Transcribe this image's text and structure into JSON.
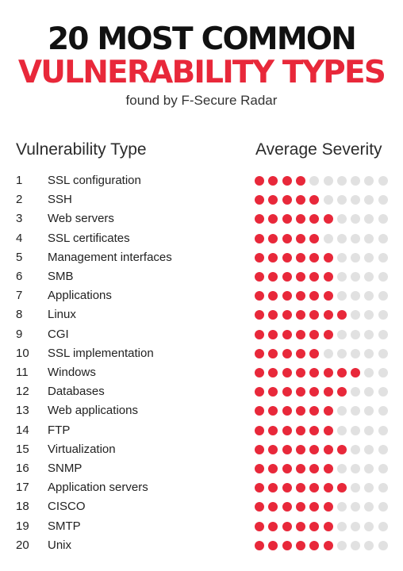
{
  "header": {
    "title_line1": "20 MOST COMMON",
    "title_line2": "VULNERABILITY TYPES",
    "subtitle": "found by F-Secure Radar",
    "col_type": "Vulnerability Type",
    "col_severity": "Average Severity"
  },
  "colors": {
    "filled": "#e8283a",
    "empty": "#e1e1e1"
  },
  "chart_data": {
    "type": "table",
    "title": "20 MOST COMMON VULNERABILITY TYPES",
    "subtitle": "found by F-Secure Radar",
    "columns": [
      "Vulnerability Type",
      "Average Severity"
    ],
    "scale_max": 10,
    "rows": [
      {
        "rank": "1",
        "type": "SSL configuration",
        "severity": 4
      },
      {
        "rank": "2",
        "type": "SSH",
        "severity": 5
      },
      {
        "rank": "3",
        "type": "Web servers",
        "severity": 6
      },
      {
        "rank": "4",
        "type": "SSL certificates",
        "severity": 5
      },
      {
        "rank": "5",
        "type": "Management interfaces",
        "severity": 6
      },
      {
        "rank": "6",
        "type": "SMB",
        "severity": 6
      },
      {
        "rank": "7",
        "type": "Applications",
        "severity": 6
      },
      {
        "rank": "8",
        "type": "Linux",
        "severity": 7
      },
      {
        "rank": "9",
        "type": "CGI",
        "severity": 6
      },
      {
        "rank": "10",
        "type": "SSL implementation",
        "severity": 5
      },
      {
        "rank": "11",
        "type": "Windows",
        "severity": 8
      },
      {
        "rank": "12",
        "type": "Databases",
        "severity": 7
      },
      {
        "rank": "13",
        "type": "Web applications",
        "severity": 6
      },
      {
        "rank": "14",
        "type": "FTP",
        "severity": 6
      },
      {
        "rank": "15",
        "type": "Virtualization",
        "severity": 7
      },
      {
        "rank": "16",
        "type": "SNMP",
        "severity": 6
      },
      {
        "rank": "17",
        "type": "Application servers",
        "severity": 7
      },
      {
        "rank": "18",
        "type": "CISCO",
        "severity": 6
      },
      {
        "rank": "19",
        "type": "SMTP",
        "severity": 6
      },
      {
        "rank": "20",
        "type": "Unix",
        "severity": 6
      }
    ]
  }
}
